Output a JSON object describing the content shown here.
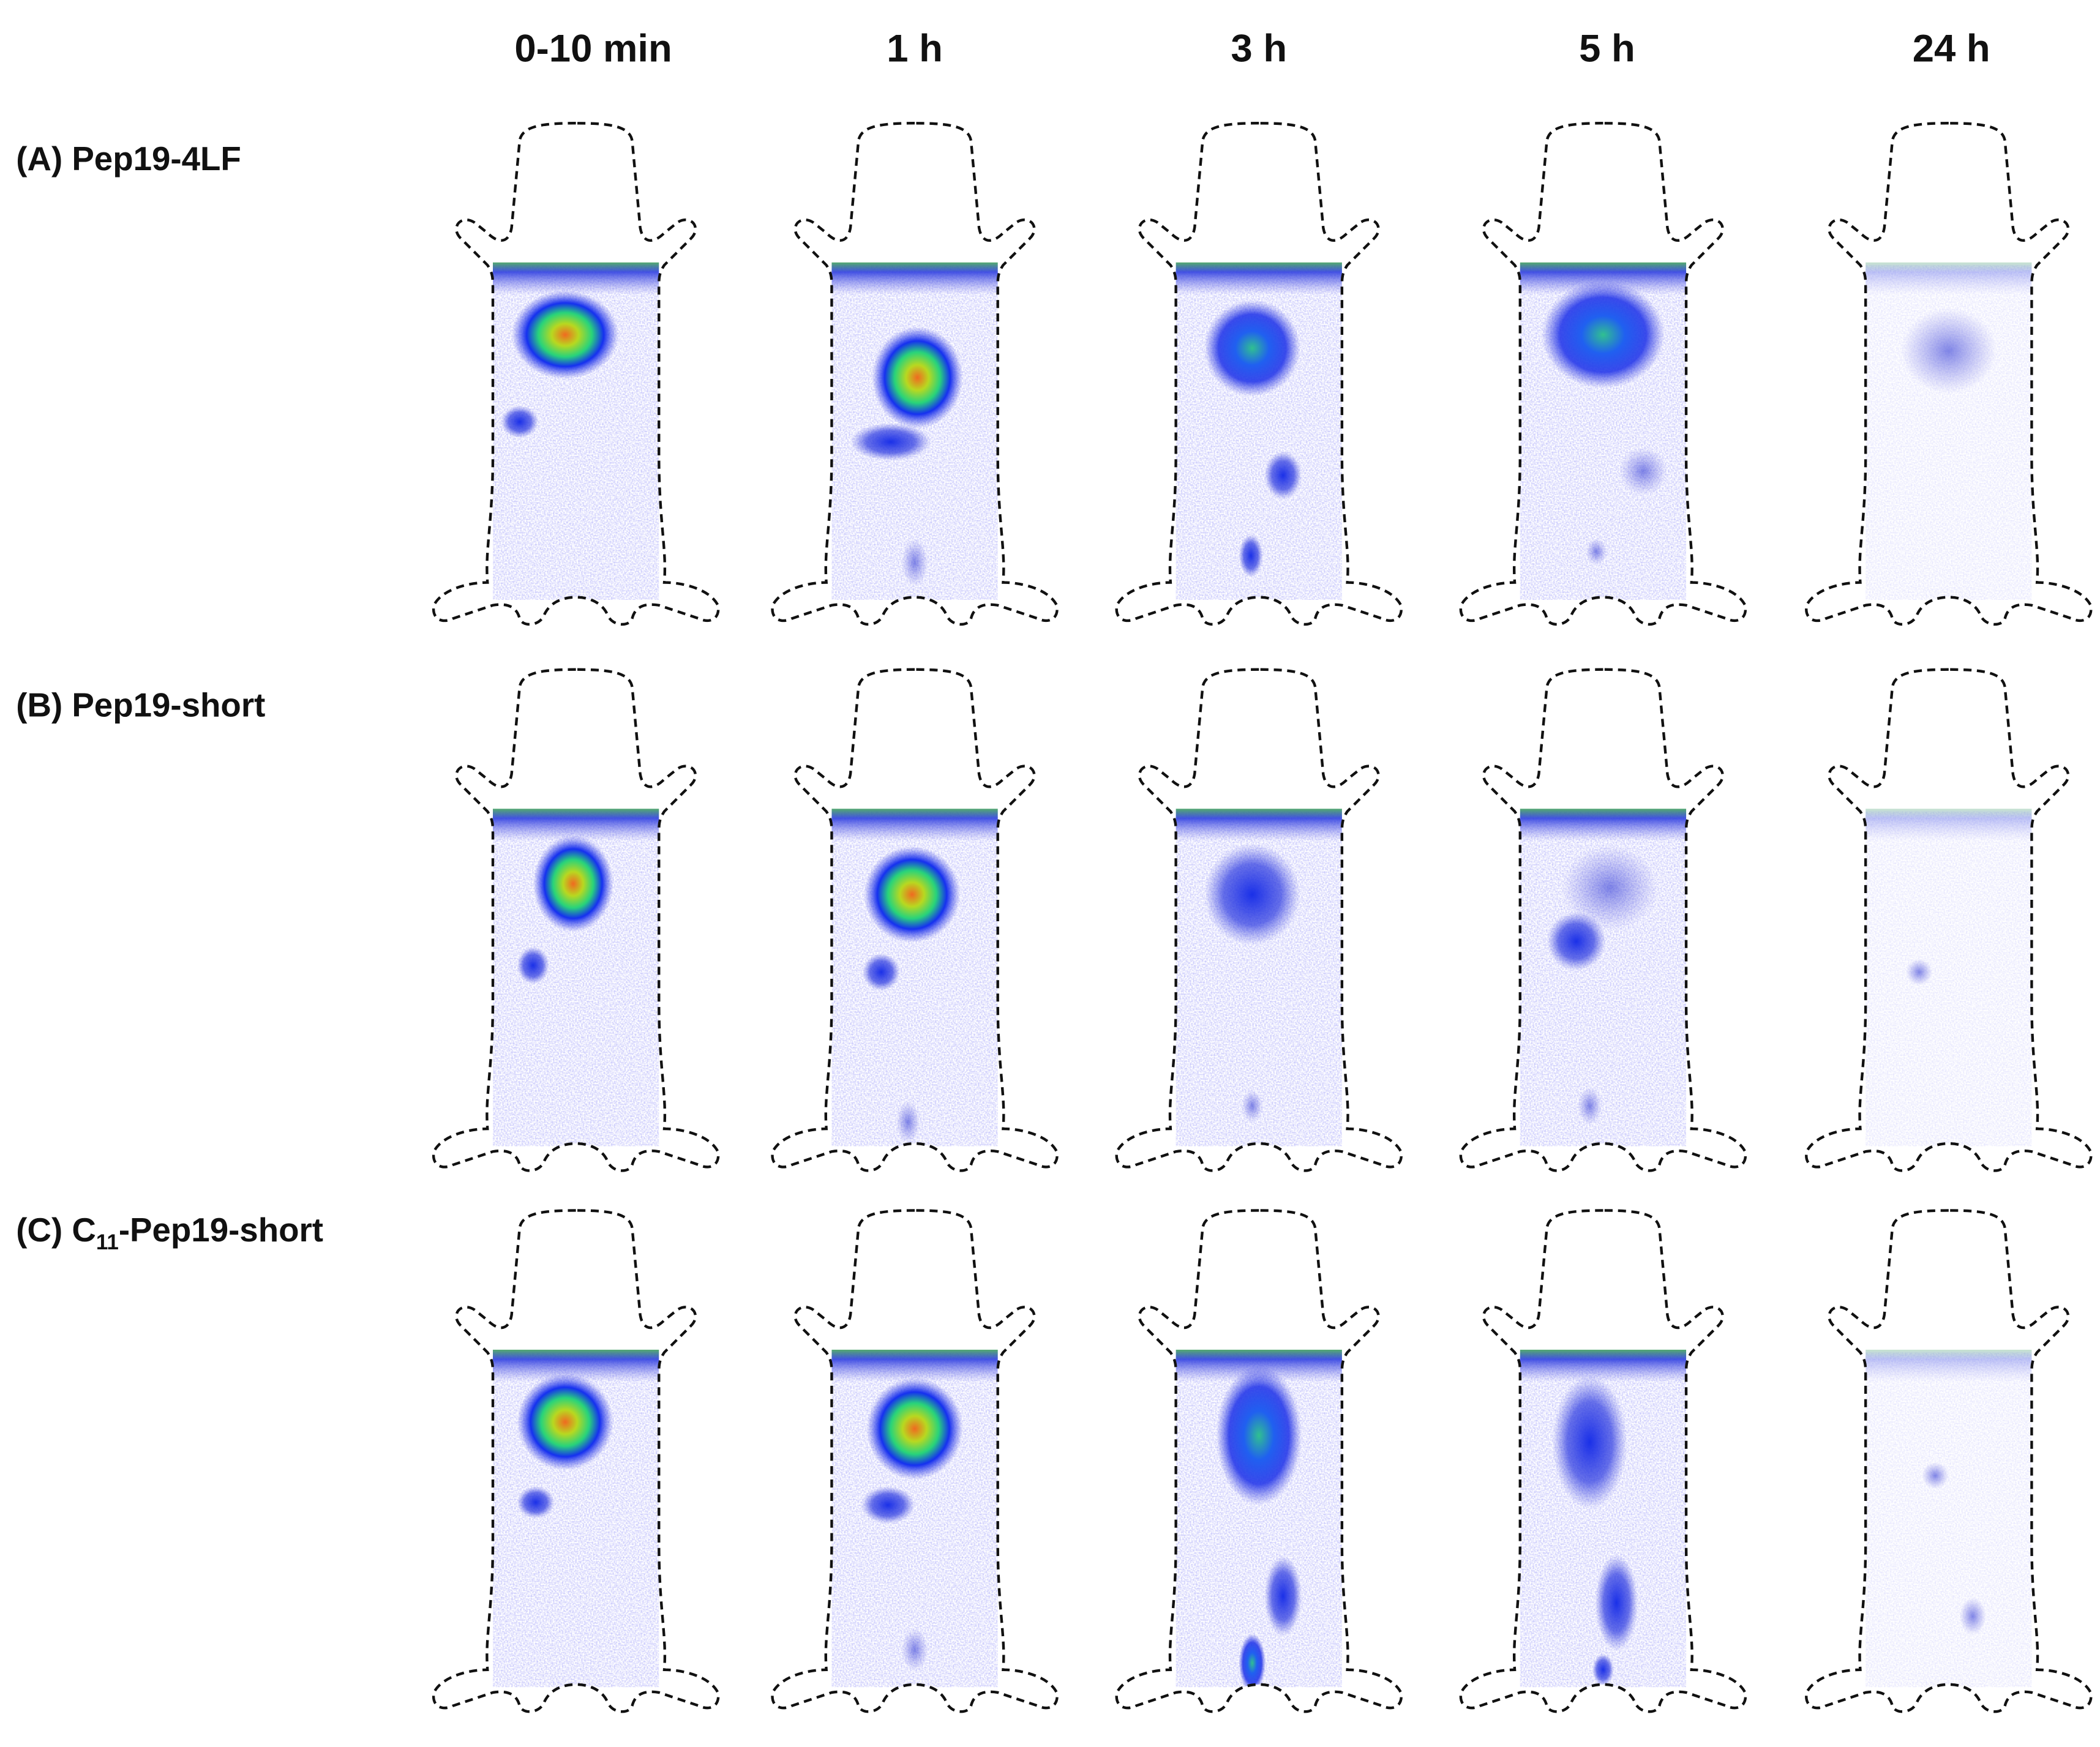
{
  "column_headers": [
    "0-10 min",
    "1 h",
    "3 h",
    "5 h",
    "24 h"
  ],
  "rows": [
    {
      "label": "(A) Pep19-4LF"
    },
    {
      "label": "(B) Pep19-short"
    },
    {
      "label_parts": [
        "(C) C",
        "11",
        "-Pep19-short"
      ]
    }
  ]
}
